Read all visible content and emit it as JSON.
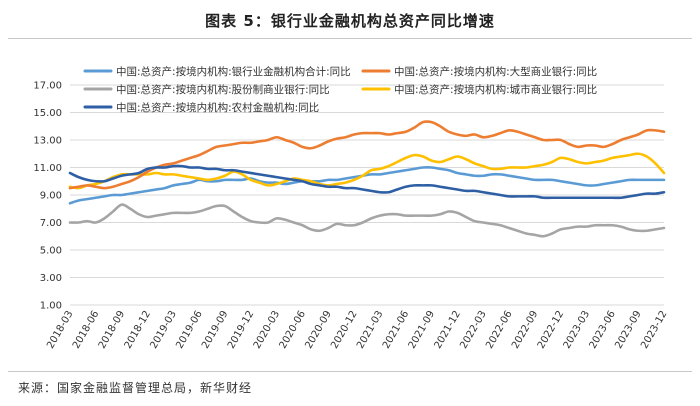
{
  "title": "图表 5：银行业金融机构总资产同比增速",
  "source": "来源：国家金融监督管理总局，新华财经",
  "chart_data": {
    "type": "line",
    "title": "图表 5：银行业金融机构总资产同比增速",
    "xlabel": "",
    "ylabel": "",
    "ylim": [
      1.0,
      17.0
    ],
    "yticks": [
      "1.00",
      "3.00",
      "5.00",
      "7.00",
      "9.00",
      "11.00",
      "13.00",
      "15.00",
      "17.00"
    ],
    "x_tick_labels": [
      "2018-03",
      "2018-06",
      "2018-09",
      "2018-12",
      "2019-03",
      "2019-06",
      "2019-09",
      "2019-12",
      "2020-03",
      "2020-06",
      "2020-09",
      "2020-12",
      "2021-03",
      "2021-06",
      "2021-09",
      "2021-12",
      "2022-03",
      "2022-06",
      "2022-09",
      "2022-12",
      "2023-03",
      "2023-06",
      "2023-09",
      "2023-12"
    ],
    "x_months": [
      "2018-03",
      "2018-04",
      "2018-05",
      "2018-06",
      "2018-07",
      "2018-08",
      "2018-09",
      "2018-10",
      "2018-11",
      "2018-12",
      "2019-01",
      "2019-02",
      "2019-03",
      "2019-04",
      "2019-05",
      "2019-06",
      "2019-07",
      "2019-08",
      "2019-09",
      "2019-10",
      "2019-11",
      "2019-12",
      "2020-01",
      "2020-02",
      "2020-03",
      "2020-04",
      "2020-05",
      "2020-06",
      "2020-07",
      "2020-08",
      "2020-09",
      "2020-10",
      "2020-11",
      "2020-12",
      "2021-01",
      "2021-02",
      "2021-03",
      "2021-04",
      "2021-05",
      "2021-06",
      "2021-07",
      "2021-08",
      "2021-09",
      "2021-10",
      "2021-11",
      "2021-12",
      "2022-01",
      "2022-02",
      "2022-03",
      "2022-04",
      "2022-05",
      "2022-06",
      "2022-07",
      "2022-08",
      "2022-09",
      "2022-10",
      "2022-11",
      "2022-12",
      "2023-01",
      "2023-02",
      "2023-03",
      "2023-04",
      "2023-05",
      "2023-06",
      "2023-07",
      "2023-08",
      "2023-09",
      "2023-10",
      "2023-11",
      "2023-12"
    ],
    "series": [
      {
        "name": "中国:总资产:按境内机构:银行业金融机构合计:同比",
        "color": "#5b9bd5",
        "values": [
          8.4,
          8.6,
          8.7,
          8.8,
          8.9,
          9.0,
          9.0,
          9.1,
          9.2,
          9.3,
          9.4,
          9.5,
          9.7,
          9.8,
          9.9,
          10.1,
          10.0,
          10.0,
          10.1,
          10.1,
          10.1,
          10.2,
          10.0,
          9.9,
          9.9,
          9.8,
          9.9,
          10.0,
          10.0,
          10.0,
          10.1,
          10.1,
          10.2,
          10.3,
          10.4,
          10.5,
          10.5,
          10.6,
          10.7,
          10.8,
          10.9,
          11.0,
          11.0,
          10.9,
          10.8,
          10.6,
          10.5,
          10.4,
          10.4,
          10.5,
          10.5,
          10.4,
          10.3,
          10.2,
          10.1,
          10.1,
          10.1,
          10.0,
          9.9,
          9.8,
          9.7,
          9.7,
          9.8,
          9.9,
          10.0,
          10.1,
          10.1,
          10.1,
          10.1,
          10.1
        ]
      },
      {
        "name": "中国:总资产:按境内机构:大型商业银行:同比",
        "color": "#ed7d31",
        "values": [
          9.5,
          9.6,
          9.7,
          9.6,
          9.5,
          9.6,
          9.8,
          10.0,
          10.3,
          10.7,
          11.0,
          11.2,
          11.3,
          11.5,
          11.7,
          11.9,
          12.2,
          12.5,
          12.6,
          12.7,
          12.8,
          12.8,
          12.9,
          13.0,
          13.2,
          13.0,
          12.8,
          12.5,
          12.4,
          12.6,
          12.9,
          13.1,
          13.2,
          13.4,
          13.5,
          13.5,
          13.5,
          13.4,
          13.5,
          13.6,
          13.9,
          14.3,
          14.3,
          14.0,
          13.6,
          13.4,
          13.3,
          13.4,
          13.2,
          13.3,
          13.5,
          13.7,
          13.6,
          13.4,
          13.2,
          13.0,
          13.0,
          13.0,
          12.7,
          12.5,
          12.6,
          12.6,
          12.5,
          12.7,
          13.0,
          13.2,
          13.4,
          13.7,
          13.7,
          13.6
        ]
      },
      {
        "name": "中国:总资产:按境内机构:股份制商业银行:同比",
        "color": "#a5a5a5",
        "values": [
          7.0,
          7.0,
          7.1,
          7.0,
          7.3,
          7.8,
          8.3,
          8.0,
          7.6,
          7.4,
          7.5,
          7.6,
          7.7,
          7.7,
          7.7,
          7.8,
          8.0,
          8.2,
          8.2,
          7.8,
          7.4,
          7.1,
          7.0,
          7.0,
          7.3,
          7.2,
          7.0,
          6.8,
          6.5,
          6.4,
          6.6,
          6.9,
          6.8,
          6.8,
          7.0,
          7.3,
          7.5,
          7.6,
          7.6,
          7.5,
          7.5,
          7.5,
          7.5,
          7.6,
          7.8,
          7.7,
          7.4,
          7.1,
          7.0,
          6.9,
          6.8,
          6.6,
          6.4,
          6.2,
          6.1,
          6.0,
          6.2,
          6.5,
          6.6,
          6.7,
          6.7,
          6.8,
          6.8,
          6.8,
          6.7,
          6.5,
          6.4,
          6.4,
          6.5,
          6.6
        ]
      },
      {
        "name": "中国:总资产:按境内机构:城市商业银行:同比",
        "color": "#ffc000",
        "values": [
          9.6,
          9.5,
          9.7,
          9.8,
          10.0,
          10.3,
          10.5,
          10.5,
          10.5,
          10.5,
          10.6,
          10.5,
          10.5,
          10.4,
          10.3,
          10.2,
          10.1,
          10.2,
          10.4,
          10.7,
          10.5,
          10.1,
          9.9,
          9.7,
          9.8,
          10.0,
          10.2,
          10.1,
          10.0,
          9.8,
          9.7,
          9.8,
          9.9,
          10.1,
          10.4,
          10.8,
          10.9,
          11.1,
          11.4,
          11.7,
          11.9,
          11.8,
          11.5,
          11.4,
          11.6,
          11.8,
          11.6,
          11.3,
          11.1,
          10.9,
          10.9,
          11.0,
          11.0,
          11.0,
          11.1,
          11.2,
          11.4,
          11.7,
          11.6,
          11.4,
          11.3,
          11.4,
          11.5,
          11.7,
          11.8,
          11.9,
          12.0,
          11.8,
          11.3,
          10.6
        ]
      },
      {
        "name": "中国:总资产:按境内机构:农村金融机构:同比",
        "color": "#2e5fa5",
        "values": [
          10.6,
          10.3,
          10.1,
          10.0,
          10.0,
          10.2,
          10.4,
          10.5,
          10.6,
          10.9,
          11.0,
          11.0,
          11.1,
          11.1,
          11.0,
          11.0,
          10.9,
          10.9,
          10.8,
          10.8,
          10.7,
          10.6,
          10.5,
          10.4,
          10.3,
          10.2,
          10.1,
          10.0,
          9.8,
          9.7,
          9.6,
          9.6,
          9.5,
          9.5,
          9.4,
          9.3,
          9.2,
          9.2,
          9.4,
          9.6,
          9.7,
          9.7,
          9.7,
          9.6,
          9.5,
          9.4,
          9.3,
          9.3,
          9.2,
          9.1,
          9.0,
          8.9,
          8.9,
          8.9,
          8.9,
          8.8,
          8.8,
          8.8,
          8.8,
          8.8,
          8.8,
          8.8,
          8.8,
          8.8,
          8.8,
          8.9,
          9.0,
          9.1,
          9.1,
          9.2
        ]
      }
    ],
    "legend_layout": [
      [
        "中国:总资产:按境内机构:银行业金融机构合计:同比",
        "中国:总资产:按境内机构:大型商业银行:同比"
      ],
      [
        "中国:总资产:按境内机构:股份制商业银行:同比",
        "中国:总资产:按境内机构:城市商业银行:同比"
      ],
      [
        "中国:总资产:按境内机构:农村金融机构:同比"
      ]
    ]
  }
}
